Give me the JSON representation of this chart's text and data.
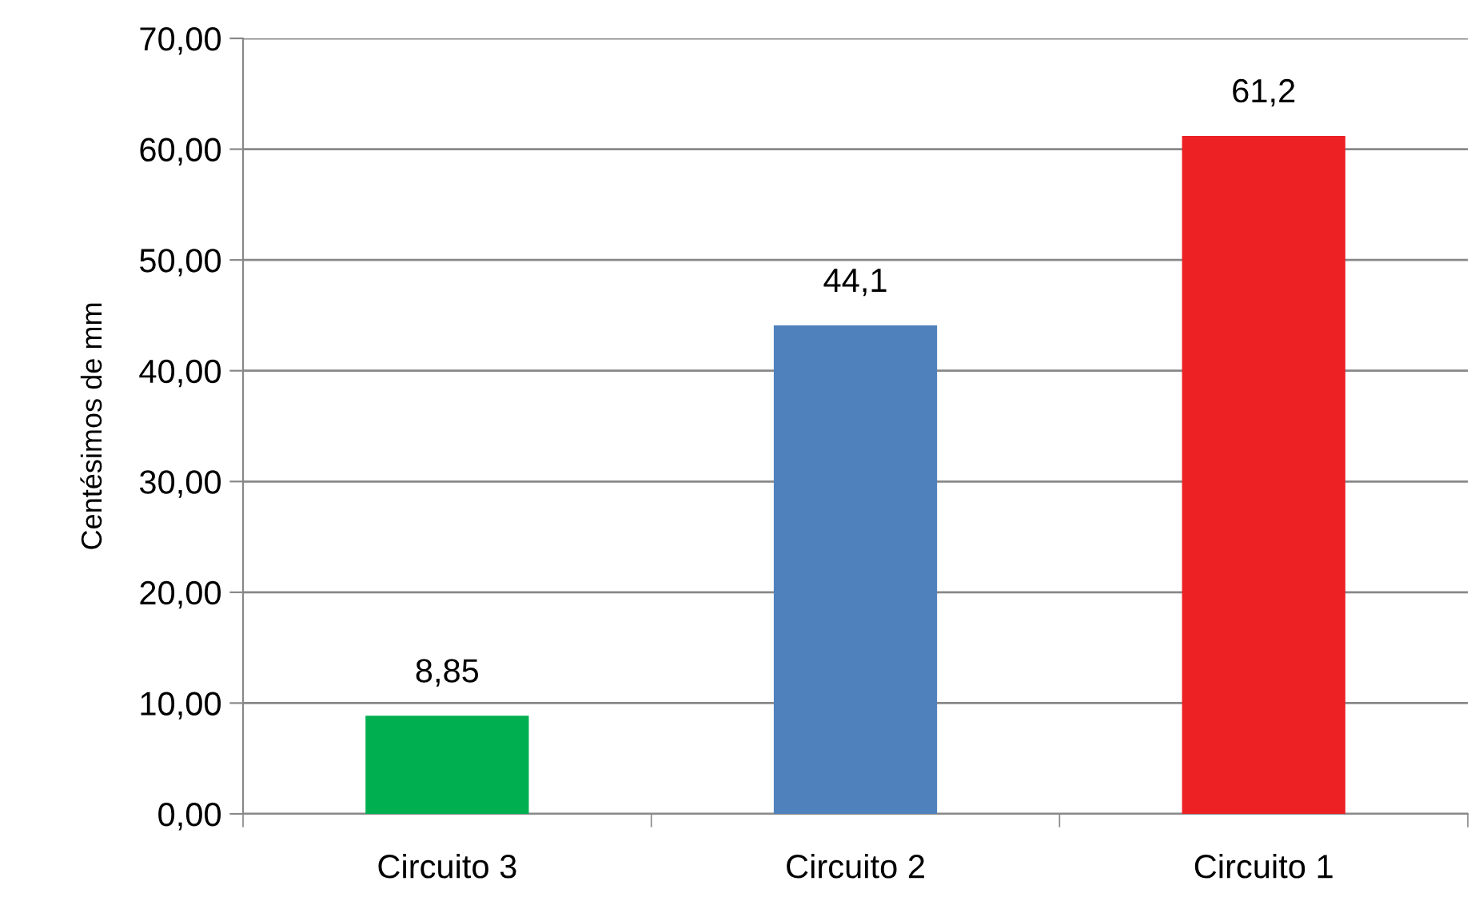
{
  "chart_data": {
    "type": "bar",
    "ylabel": "Centésimos de mm",
    "categories": [
      "Circuito 3",
      "Circuito 2",
      "Circuito 1"
    ],
    "values": [
      8.85,
      44.1,
      61.2
    ],
    "colors": [
      "#00b050",
      "#4f81bd",
      "#ed2024"
    ],
    "value_labels": [
      "8,85",
      "44,1",
      "61,2"
    ],
    "ylim": [
      0,
      70
    ],
    "yticks": [
      {
        "value": 0,
        "label": "0,00"
      },
      {
        "value": 10,
        "label": "10,00"
      },
      {
        "value": 20,
        "label": "20,00"
      },
      {
        "value": 30,
        "label": "30,00"
      },
      {
        "value": 40,
        "label": "40,00"
      },
      {
        "value": 50,
        "label": "50,00"
      },
      {
        "value": 60,
        "label": "60,00"
      },
      {
        "value": 70,
        "label": "70,00"
      }
    ],
    "grid": "y",
    "legend": false
  }
}
